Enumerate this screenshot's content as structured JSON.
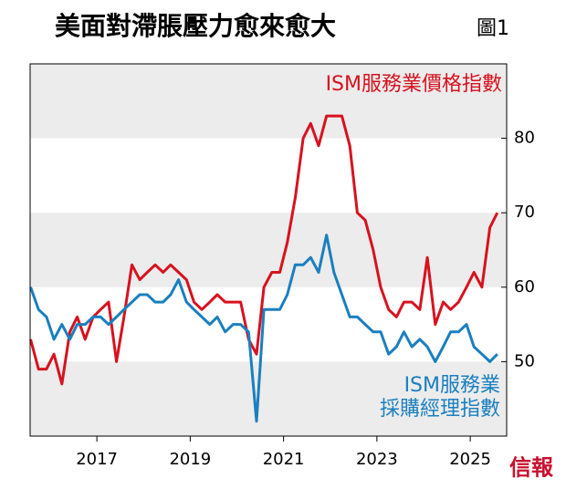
{
  "chart_data": {
    "type": "line",
    "title": "美面對滯脹壓力愈來愈大",
    "subtitle": "圖1",
    "source": "信報",
    "x": [
      2015.58,
      2015.75,
      2015.92,
      2016.08,
      2016.25,
      2016.42,
      2016.58,
      2016.75,
      2016.92,
      2017.08,
      2017.25,
      2017.42,
      2017.58,
      2017.75,
      2017.92,
      2018.08,
      2018.25,
      2018.42,
      2018.58,
      2018.75,
      2018.92,
      2019.08,
      2019.25,
      2019.42,
      2019.58,
      2019.75,
      2019.92,
      2020.08,
      2020.25,
      2020.42,
      2020.58,
      2020.75,
      2020.92,
      2021.08,
      2021.25,
      2021.42,
      2021.58,
      2021.75,
      2021.92,
      2022.08,
      2022.25,
      2022.42,
      2022.58,
      2022.75,
      2022.92,
      2023.08,
      2023.25,
      2023.42,
      2023.58,
      2023.75,
      2023.92,
      2024.08,
      2024.25,
      2024.42,
      2024.58,
      2024.75,
      2024.92,
      2025.08,
      2025.25,
      2025.42,
      2025.58
    ],
    "series": [
      {
        "name": "ISM服務業價格指數",
        "color": "#d7121f",
        "values": [
          53,
          49,
          49,
          51,
          47,
          54,
          56,
          53,
          56,
          57,
          58,
          50,
          56,
          63,
          61,
          62,
          63,
          62,
          63,
          62,
          61,
          58,
          57,
          58,
          59,
          58,
          58,
          58,
          53,
          51,
          60,
          62,
          62,
          66,
          72,
          80,
          82,
          79,
          83,
          83,
          83,
          79,
          70,
          69,
          65,
          60,
          57,
          56,
          58,
          58,
          57,
          64,
          55,
          58,
          57,
          58,
          60,
          62,
          60,
          68,
          70
        ]
      },
      {
        "name": "ISM服務業\n採購經理指數",
        "color": "#1a7fbf",
        "values": [
          60,
          57,
          56,
          53,
          55,
          53,
          55,
          55,
          56,
          56,
          55,
          56,
          57,
          58,
          59,
          59,
          58,
          58,
          59,
          61,
          58,
          57,
          56,
          55,
          56,
          54,
          55,
          55,
          54,
          42,
          57,
          57,
          57,
          59,
          63,
          63,
          64,
          62,
          67,
          62,
          59,
          56,
          56,
          55,
          54,
          54,
          51,
          52,
          54,
          52,
          53,
          52,
          50,
          52,
          54,
          54,
          55,
          52,
          51,
          50,
          51
        ]
      }
    ],
    "xlim": [
      2015.57,
      2025.78
    ],
    "xticks": [
      2017,
      2019,
      2021,
      2023,
      2025
    ],
    "ylim": [
      40,
      90
    ],
    "yticks": [
      50,
      60,
      70,
      80
    ],
    "grid": "bands"
  }
}
